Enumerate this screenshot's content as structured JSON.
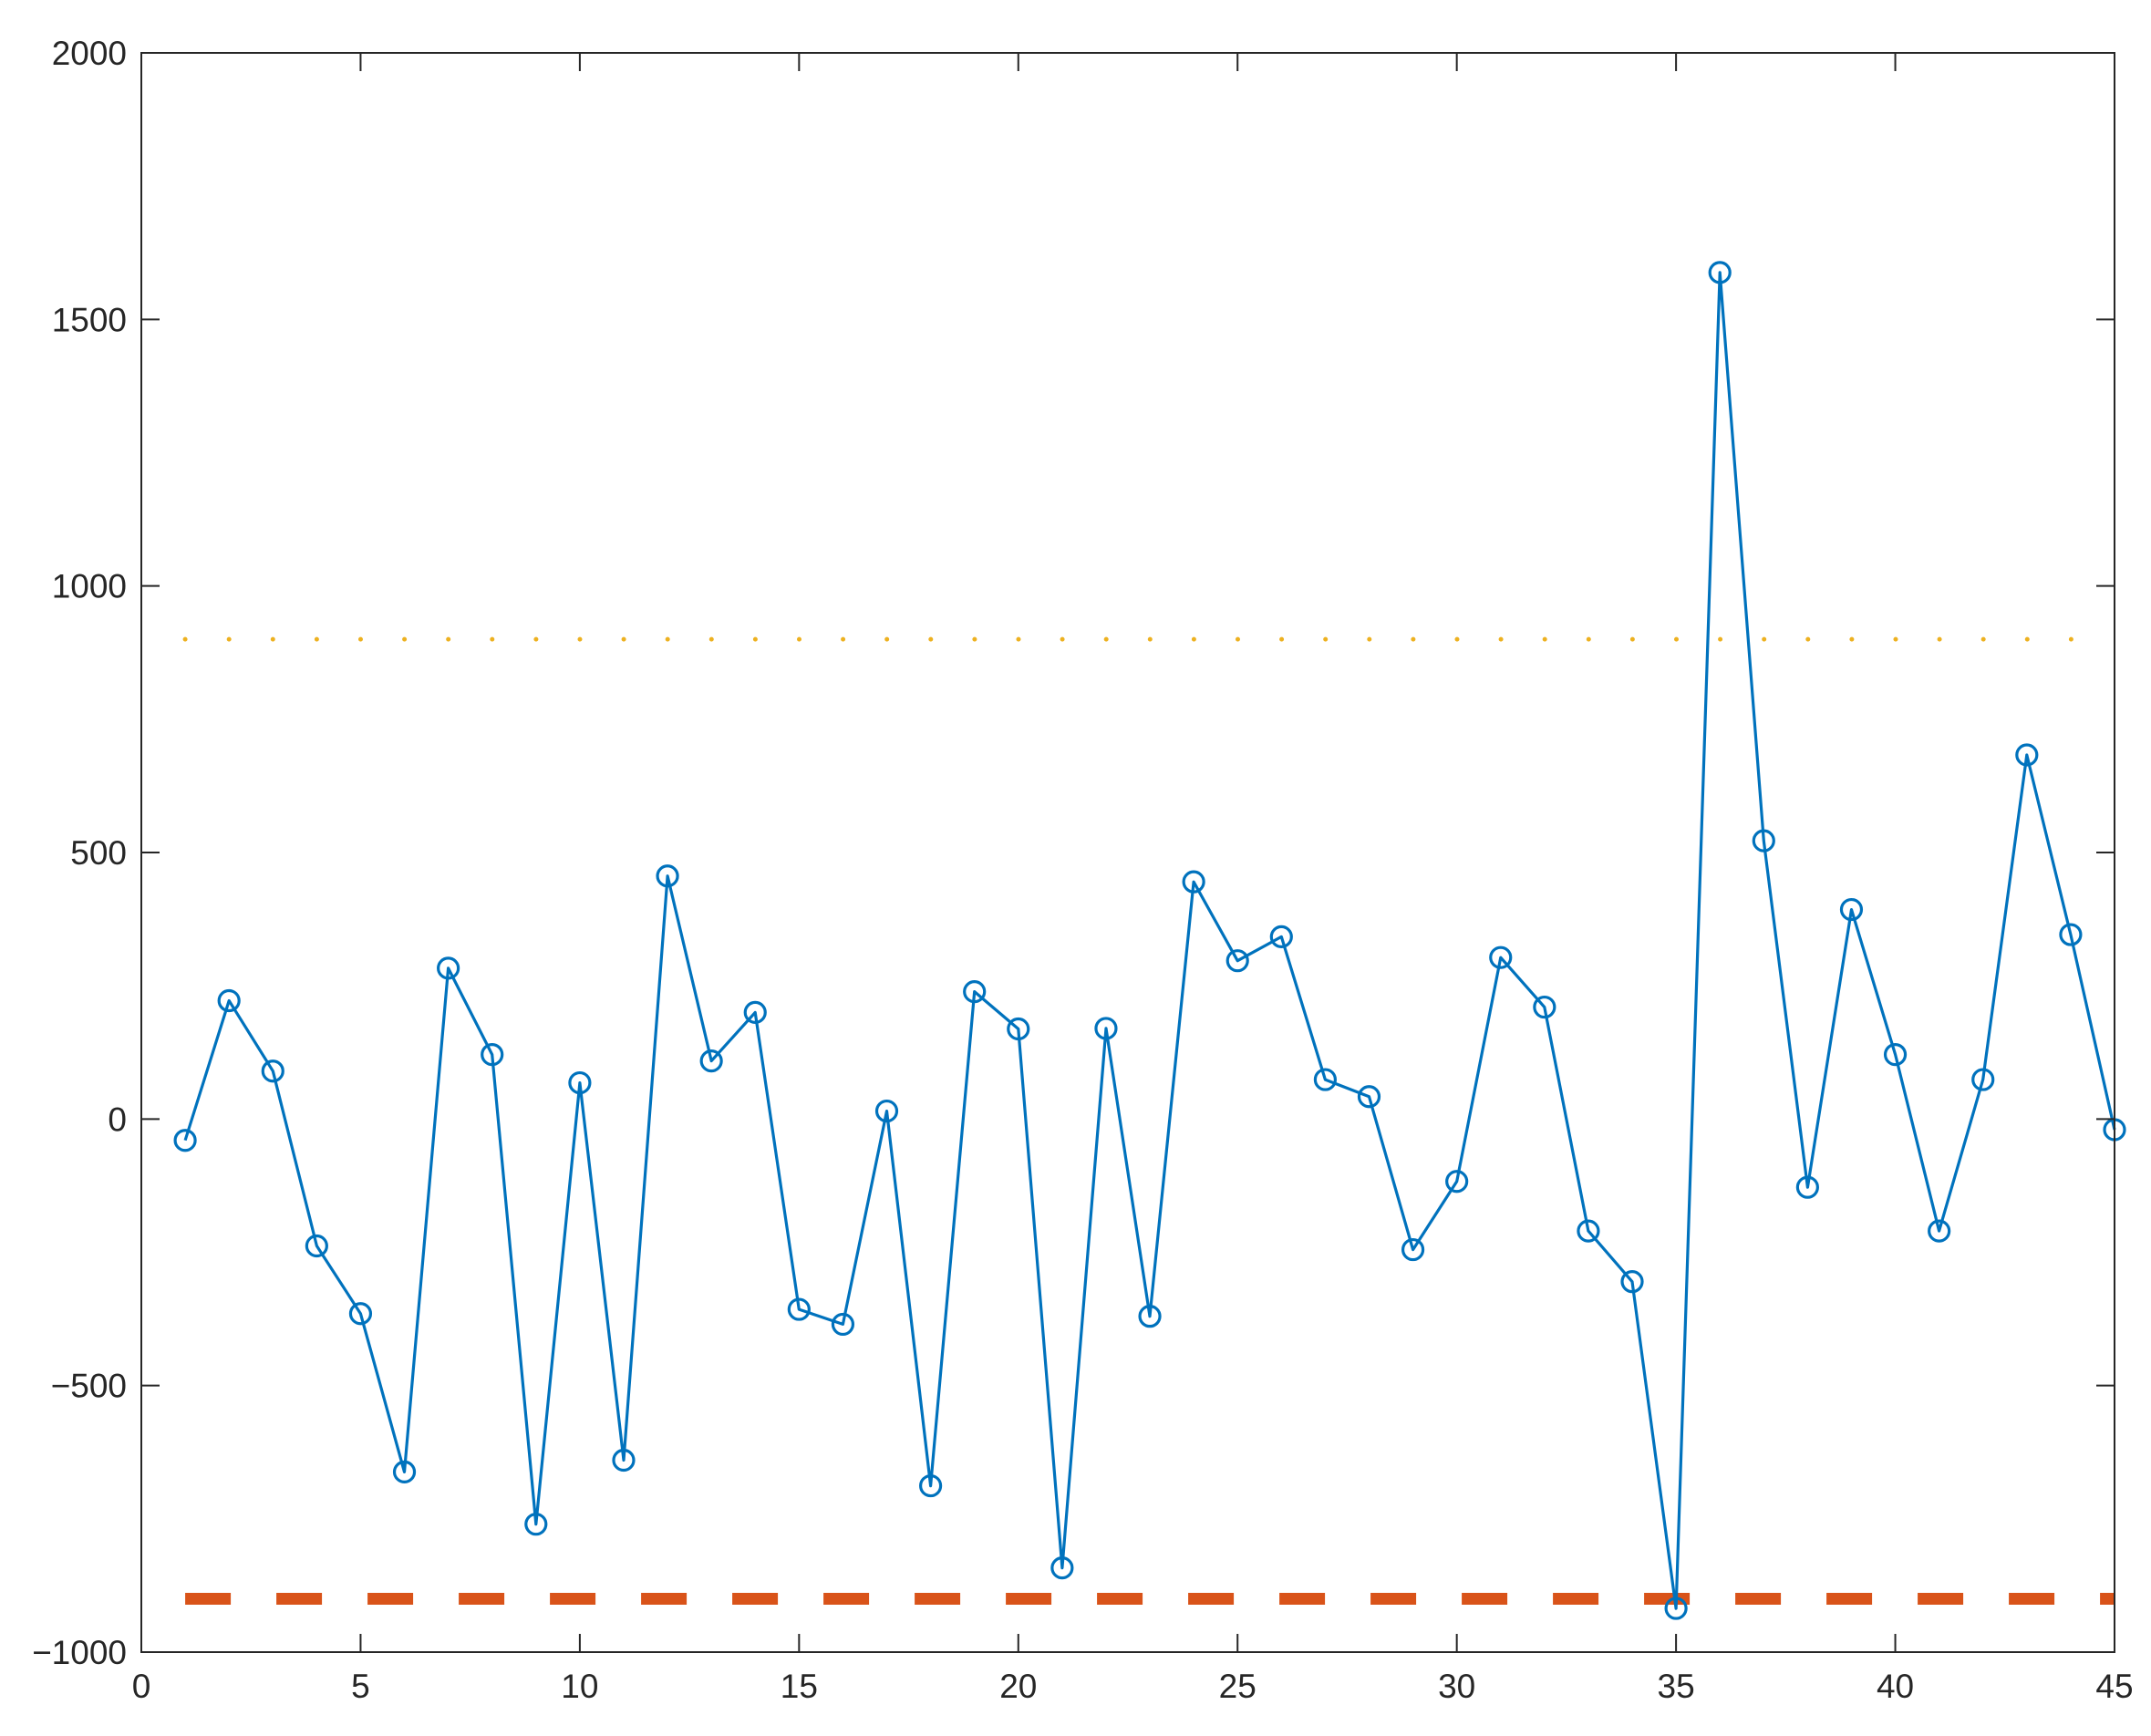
{
  "chart_data": {
    "type": "line",
    "title": "",
    "xlabel": "",
    "ylabel": "",
    "xlim": [
      0,
      45
    ],
    "ylim": [
      -1000,
      2000
    ],
    "x_ticks": [
      0,
      5,
      10,
      15,
      20,
      25,
      30,
      35,
      40,
      45
    ],
    "y_ticks": [
      -1000,
      -500,
      0,
      500,
      1000,
      1500,
      2000
    ],
    "x_tick_labels": [
      "0",
      "5",
      "10",
      "15",
      "20",
      "25",
      "30",
      "35",
      "40",
      "45"
    ],
    "y_tick_labels": [
      "−1000",
      "−500",
      "0",
      "500",
      "1000",
      "1500",
      "2000"
    ],
    "grid": false,
    "series": [
      {
        "style": "line-with-circle-markers",
        "color": "#0072BD",
        "x": [
          1,
          2,
          3,
          4,
          5,
          6,
          7,
          8,
          9,
          10,
          11,
          12,
          13,
          14,
          15,
          16,
          17,
          18,
          19,
          20,
          21,
          22,
          23,
          24,
          25,
          26,
          27,
          28,
          29,
          30,
          31,
          32,
          33,
          34,
          35,
          36,
          37,
          38,
          39,
          40,
          41,
          42,
          43,
          44,
          45
        ],
        "values": [
          -40,
          222,
          90,
          -238,
          -365,
          -662,
          283,
          121,
          -760,
          68,
          -640,
          456,
          109,
          200,
          -357,
          -385,
          15,
          -688,
          239,
          169,
          -842,
          170,
          -370,
          445,
          297,
          342,
          74,
          42,
          -245,
          -117,
          303,
          210,
          -210,
          -305,
          -918,
          1588,
          522,
          -128,
          393,
          121,
          -210,
          74,
          683,
          346,
          -20
        ]
      }
    ],
    "reference_lines": [
      {
        "style": "dotted",
        "color": "#EDB120",
        "y": 900
      },
      {
        "style": "dashed",
        "color": "#D95319",
        "y": -900
      }
    ]
  }
}
